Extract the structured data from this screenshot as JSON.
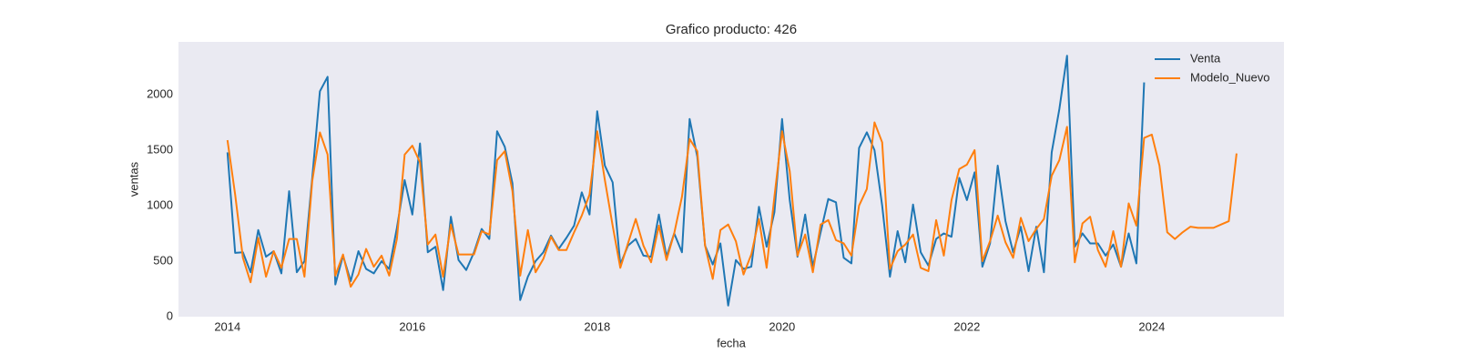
{
  "chart_data": {
    "type": "line",
    "title": "Grafico producto: 426",
    "x_label": "fecha",
    "y_label": "ventas",
    "x": [
      2014,
      2014.083,
      2014.167,
      2014.25,
      2014.333,
      2014.417,
      2014.5,
      2014.583,
      2014.667,
      2014.75,
      2014.833,
      2014.917,
      2015,
      2015.083,
      2015.167,
      2015.25,
      2015.333,
      2015.417,
      2015.5,
      2015.583,
      2015.667,
      2015.75,
      2015.833,
      2015.917,
      2016,
      2016.083,
      2016.167,
      2016.25,
      2016.333,
      2016.417,
      2016.5,
      2016.583,
      2016.667,
      2016.75,
      2016.833,
      2016.917,
      2017,
      2017.083,
      2017.167,
      2017.25,
      2017.333,
      2017.417,
      2017.5,
      2017.583,
      2017.667,
      2017.75,
      2017.833,
      2017.917,
      2018,
      2018.083,
      2018.167,
      2018.25,
      2018.333,
      2018.417,
      2018.5,
      2018.583,
      2018.667,
      2018.75,
      2018.833,
      2018.917,
      2019,
      2019.083,
      2019.167,
      2019.25,
      2019.333,
      2019.417,
      2019.5,
      2019.583,
      2019.667,
      2019.75,
      2019.833,
      2019.917,
      2020,
      2020.083,
      2020.167,
      2020.25,
      2020.333,
      2020.417,
      2020.5,
      2020.583,
      2020.667,
      2020.75,
      2020.833,
      2020.917,
      2021,
      2021.083,
      2021.167,
      2021.25,
      2021.333,
      2021.417,
      2021.5,
      2021.583,
      2021.667,
      2021.75,
      2021.833,
      2021.917,
      2022,
      2022.083,
      2022.167,
      2022.25,
      2022.333,
      2022.417,
      2022.5,
      2022.583,
      2022.667,
      2022.75,
      2022.833,
      2022.917,
      2023,
      2023.083,
      2023.167,
      2023.25,
      2023.333,
      2023.417,
      2023.5,
      2023.583,
      2023.667,
      2023.75,
      2023.833,
      2023.917,
      2024,
      2024.083,
      2024.167,
      2024.25,
      2024.333,
      2024.417,
      2024.5,
      2024.583,
      2024.667,
      2024.75,
      2024.833,
      2024.917
    ],
    "series": [
      {
        "name": "Venta",
        "color": "#1f77b4",
        "values": [
          1480,
          575,
          580,
          400,
          780,
          540,
          590,
          390,
          1130,
          400,
          500,
          1250,
          2030,
          2160,
          290,
          550,
          320,
          590,
          430,
          390,
          500,
          430,
          800,
          1230,
          920,
          1560,
          580,
          630,
          240,
          900,
          510,
          420,
          580,
          790,
          700,
          1670,
          1530,
          1200,
          150,
          360,
          500,
          580,
          730,
          610,
          710,
          820,
          1120,
          920,
          1850,
          1360,
          1210,
          470,
          640,
          700,
          550,
          540,
          920,
          540,
          750,
          580,
          1780,
          1440,
          640,
          470,
          660,
          100,
          510,
          430,
          450,
          990,
          630,
          940,
          1780,
          1050,
          540,
          920,
          450,
          760,
          1060,
          1030,
          530,
          480,
          1520,
          1660,
          1500,
          1000,
          360,
          770,
          490,
          1010,
          580,
          460,
          700,
          750,
          720,
          1250,
          1050,
          1300,
          450,
          660,
          1360,
          860,
          580,
          810,
          410,
          810,
          400,
          1480,
          1870,
          2350,
          630,
          750,
          660,
          660,
          550,
          650,
          450,
          750,
          480,
          2110,
          null,
          null,
          null,
          null,
          null,
          null,
          null,
          null,
          null,
          null,
          null,
          null
        ]
      },
      {
        "name": "Modelo_Nuevo",
        "color": "#ff7f0e",
        "values": [
          1590,
          1100,
          530,
          310,
          710,
          360,
          590,
          440,
          700,
          700,
          360,
          1220,
          1660,
          1460,
          370,
          560,
          270,
          380,
          610,
          450,
          550,
          370,
          700,
          1460,
          1540,
          1390,
          650,
          740,
          360,
          830,
          560,
          560,
          560,
          770,
          740,
          1410,
          1490,
          1130,
          370,
          780,
          400,
          520,
          720,
          600,
          600,
          760,
          910,
          1100,
          1670,
          1230,
          820,
          440,
          660,
          880,
          640,
          490,
          820,
          510,
          750,
          1080,
          1600,
          1490,
          640,
          340,
          780,
          830,
          680,
          380,
          560,
          880,
          440,
          1080,
          1670,
          1310,
          550,
          740,
          400,
          830,
          870,
          690,
          660,
          550,
          1000,
          1150,
          1750,
          1570,
          430,
          590,
          650,
          740,
          440,
          410,
          870,
          550,
          1050,
          1330,
          1370,
          1500,
          500,
          680,
          910,
          670,
          530,
          890,
          680,
          790,
          880,
          1270,
          1410,
          1710,
          490,
          840,
          900,
          600,
          450,
          770,
          450,
          1020,
          820,
          1610,
          1640,
          1360,
          760,
          700,
          760,
          810,
          800,
          800,
          800,
          830,
          860,
          1470
        ]
      }
    ],
    "xlim": [
      2013.47,
      2025.43
    ],
    "xticks": [
      2014,
      2016,
      2018,
      2020,
      2022,
      2024
    ],
    "ylim": [
      0,
      2475
    ],
    "yticks": [
      0,
      500,
      1000,
      1500,
      2000
    ],
    "grid": false,
    "legend": "upper right",
    "background": "#eaeaf2"
  }
}
